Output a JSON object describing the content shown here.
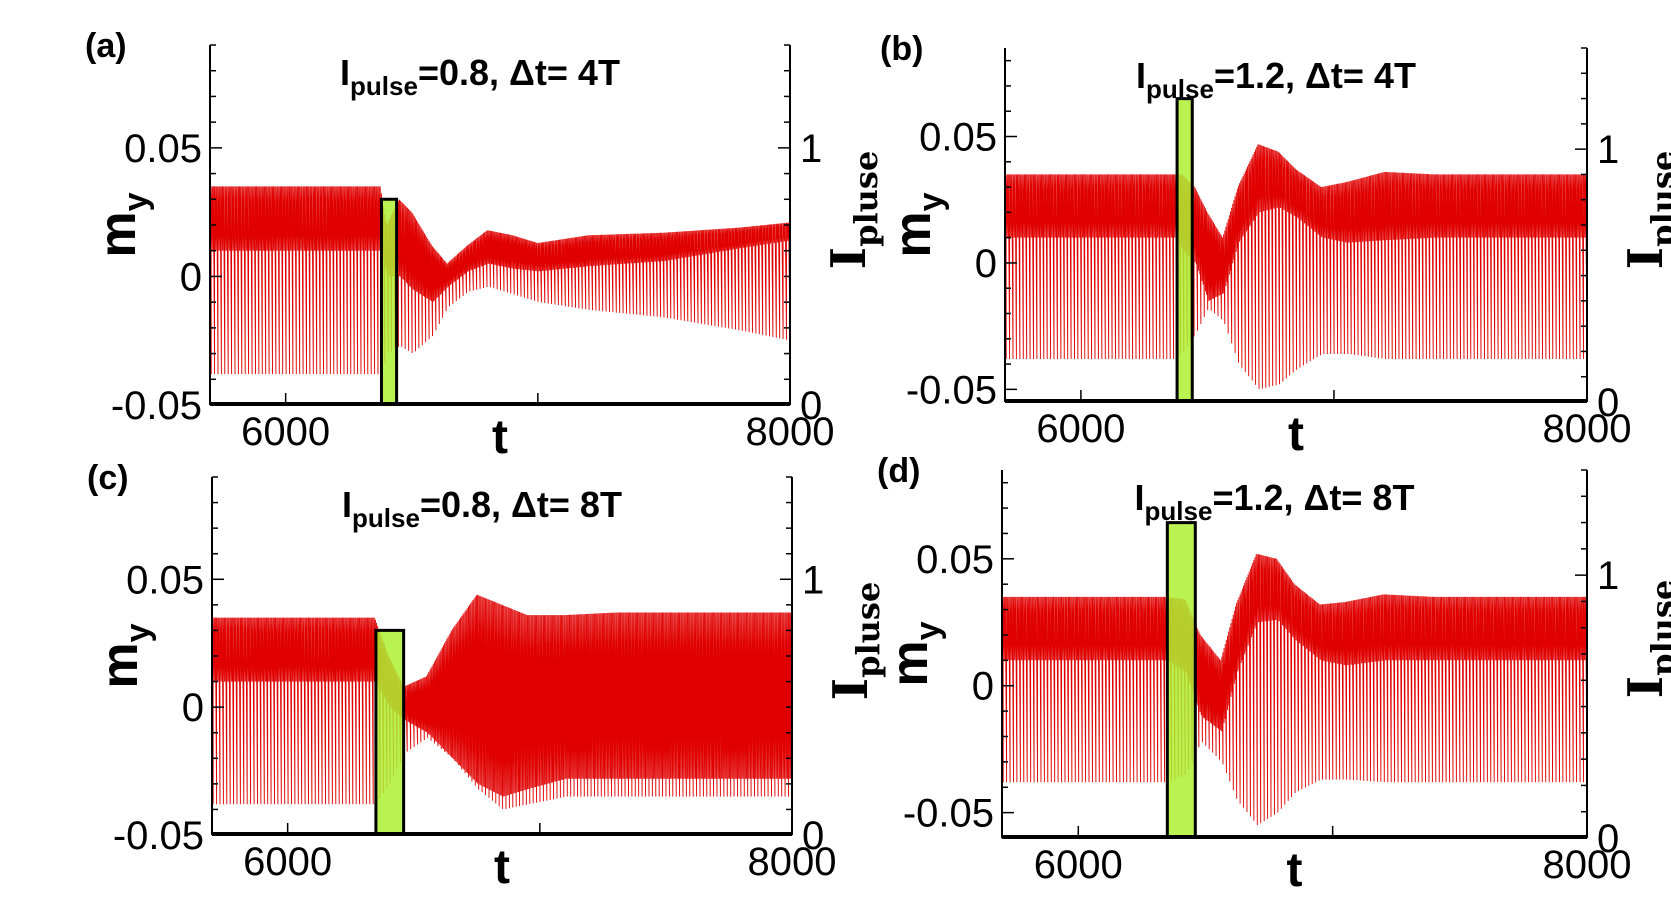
{
  "figure": {
    "colors": {
      "signal": "#e00000",
      "pulse_fill": "#aef032",
      "axis": "#000000",
      "background": "#ffffff"
    }
  },
  "chart_data": [
    {
      "id": "a",
      "type": "line",
      "panel_label": "(a)",
      "title": {
        "sym": "I",
        "sub": "pulse",
        "rest": "=0.8, Δt= 4T"
      },
      "xlabel": "t",
      "ylabel": {
        "main": "m",
        "sub": "y"
      },
      "y2label": {
        "main": "I",
        "sub": "pluse"
      },
      "xlim": [
        5700,
        8000
      ],
      "xticks": [
        "6000",
        "8000"
      ],
      "xtick_values": [
        6000,
        8000
      ],
      "ylim": [
        -0.05,
        0.09
      ],
      "yticks": [
        "0.05",
        "0",
        "-0.05"
      ],
      "ytick_values": [
        0.05,
        0,
        -0.05
      ],
      "y2lim": [
        0,
        1.4
      ],
      "y2ticks": [
        "1",
        "0"
      ],
      "y2tick_values": [
        1,
        0
      ],
      "pulse": {
        "amplitude": 0.8,
        "t_start": 6380,
        "t_end": 6440
      },
      "series": [
        {
          "role": "m_y",
          "envelope": {
            "t": [
              5700,
              6375,
              6400,
              6450,
              6500,
              6580,
              6640,
              6720,
              6800,
              6900,
              7000,
              7200,
              7500,
              7800,
              8000
            ],
            "upper": [
              0.035,
              0.035,
              0.02,
              0.03,
              0.025,
              0.012,
              0.005,
              0.012,
              0.018,
              0.016,
              0.013,
              0.016,
              0.017,
              0.019,
              0.021
            ],
            "lower": [
              -0.038,
              -0.038,
              -0.03,
              -0.027,
              -0.03,
              -0.023,
              -0.012,
              -0.006,
              -0.004,
              -0.007,
              -0.01,
              -0.013,
              -0.016,
              -0.021,
              -0.025
            ],
            "dense_lower": [
              0.01,
              0.01,
              0.0,
              0.0,
              -0.005,
              -0.01,
              -0.004,
              0.002,
              0.005,
              0.003,
              0.002,
              0.004,
              0.006,
              0.011,
              0.014
            ]
          }
        }
      ]
    },
    {
      "id": "b",
      "type": "line",
      "panel_label": "(b)",
      "title": {
        "sym": "I",
        "sub": "pulse",
        "rest": "=1.2, Δt= 4T"
      },
      "xlabel": "t",
      "ylabel": {
        "main": "m",
        "sub": "y"
      },
      "y2label": {
        "main": "I",
        "sub": "pluse"
      },
      "xlim": [
        5700,
        8000
      ],
      "xticks": [
        "6000",
        "8000"
      ],
      "xtick_values": [
        6000,
        8000
      ],
      "ylim": [
        -0.055,
        0.085
      ],
      "yticks": [
        "0.05",
        "0",
        "-0.05"
      ],
      "ytick_values": [
        0.05,
        0,
        -0.05
      ],
      "y2lim": [
        0,
        1.4
      ],
      "y2ticks": [
        "1",
        "0"
      ],
      "y2tick_values": [
        1,
        0
      ],
      "pulse": {
        "amplitude": 1.2,
        "t_start": 6380,
        "t_end": 6440
      },
      "series": [
        {
          "role": "m_y",
          "envelope": {
            "t": [
              5700,
              6375,
              6400,
              6450,
              6500,
              6560,
              6620,
              6700,
              6780,
              6850,
              6950,
              7050,
              7200,
              7400,
              7600,
              8000
            ],
            "upper": [
              0.035,
              0.035,
              0.035,
              0.03,
              0.02,
              0.01,
              0.03,
              0.047,
              0.044,
              0.037,
              0.03,
              0.032,
              0.036,
              0.035,
              0.035,
              0.035
            ],
            "lower": [
              -0.038,
              -0.038,
              -0.035,
              -0.028,
              -0.018,
              -0.023,
              -0.04,
              -0.05,
              -0.048,
              -0.042,
              -0.036,
              -0.036,
              -0.038,
              -0.038,
              -0.038,
              -0.038
            ],
            "dense_lower": [
              0.01,
              0.01,
              0.005,
              0.0,
              -0.015,
              -0.012,
              0.008,
              0.02,
              0.022,
              0.018,
              0.01,
              0.008,
              0.009,
              0.01,
              0.01,
              0.01
            ]
          }
        }
      ]
    },
    {
      "id": "c",
      "type": "line",
      "panel_label": "(c)",
      "title": {
        "sym": "I",
        "sub": "pulse",
        "rest": "=0.8, Δt= 8T"
      },
      "xlabel": "t",
      "ylabel": {
        "main": "m",
        "sub": "y"
      },
      "y2label": {
        "main": "I",
        "sub": "pluse"
      },
      "xlim": [
        5700,
        8000
      ],
      "xticks": [
        "6000",
        "8000"
      ],
      "xtick_values": [
        6000,
        8000
      ],
      "ylim": [
        -0.05,
        0.09
      ],
      "yticks": [
        "0.05",
        "0",
        "-0.05"
      ],
      "ytick_values": [
        0.05,
        0,
        -0.05
      ],
      "y2lim": [
        0,
        1.4
      ],
      "y2ticks": [
        "1",
        "0"
      ],
      "y2tick_values": [
        1,
        0
      ],
      "pulse": {
        "amplitude": 0.8,
        "t_start": 6350,
        "t_end": 6460
      },
      "series": [
        {
          "role": "m_y",
          "envelope": {
            "t": [
              5700,
              6345,
              6400,
              6460,
              6550,
              6650,
              6750,
              6850,
              6950,
              7100,
              7300,
              7500,
              8000
            ],
            "upper": [
              0.035,
              0.035,
              0.02,
              0.008,
              0.012,
              0.03,
              0.044,
              0.04,
              0.036,
              0.036,
              0.037,
              0.037,
              0.037
            ],
            "lower": [
              -0.038,
              -0.038,
              -0.03,
              -0.018,
              -0.012,
              -0.02,
              -0.032,
              -0.04,
              -0.038,
              -0.035,
              -0.035,
              -0.035,
              -0.035
            ],
            "dense_lower": [
              0.01,
              0.01,
              0.0,
              -0.005,
              -0.01,
              -0.02,
              -0.03,
              -0.035,
              -0.032,
              -0.028,
              -0.028,
              -0.028,
              -0.028
            ]
          }
        }
      ]
    },
    {
      "id": "d",
      "type": "line",
      "panel_label": "(d)",
      "title": {
        "sym": "I",
        "sub": "pulse",
        "rest": "=1.2, Δt= 8T"
      },
      "xlabel": "t",
      "ylabel": {
        "main": "m",
        "sub": "y"
      },
      "y2label": {
        "main": "I",
        "sub": "pluse"
      },
      "xlim": [
        5700,
        8000
      ],
      "xticks": [
        "6000",
        "8000"
      ],
      "xtick_values": [
        6000,
        8000
      ],
      "ylim": [
        -0.06,
        0.085
      ],
      "yticks": [
        "0.05",
        "0",
        "-0.05"
      ],
      "ytick_values": [
        0.05,
        0,
        -0.05
      ],
      "y2lim": [
        0,
        1.4
      ],
      "y2ticks": [
        "1",
        "0"
      ],
      "y2tick_values": [
        1,
        0
      ],
      "pulse": {
        "amplitude": 1.2,
        "t_start": 6350,
        "t_end": 6460
      },
      "series": [
        {
          "role": "m_y",
          "envelope": {
            "t": [
              5700,
              6345,
              6420,
              6480,
              6560,
              6620,
              6700,
              6780,
              6850,
              6950,
              7050,
              7200,
              7400,
              7600,
              8000
            ],
            "upper": [
              0.035,
              0.035,
              0.034,
              0.02,
              0.01,
              0.032,
              0.052,
              0.05,
              0.04,
              0.032,
              0.033,
              0.036,
              0.035,
              0.035,
              0.035
            ],
            "lower": [
              -0.038,
              -0.038,
              -0.035,
              -0.022,
              -0.03,
              -0.045,
              -0.055,
              -0.05,
              -0.042,
              -0.037,
              -0.037,
              -0.038,
              -0.038,
              -0.038,
              -0.038
            ],
            "dense_lower": [
              0.01,
              0.01,
              0.005,
              -0.012,
              -0.018,
              0.005,
              0.025,
              0.026,
              0.018,
              0.01,
              0.008,
              0.01,
              0.01,
              0.01,
              0.01
            ]
          }
        }
      ]
    }
  ]
}
